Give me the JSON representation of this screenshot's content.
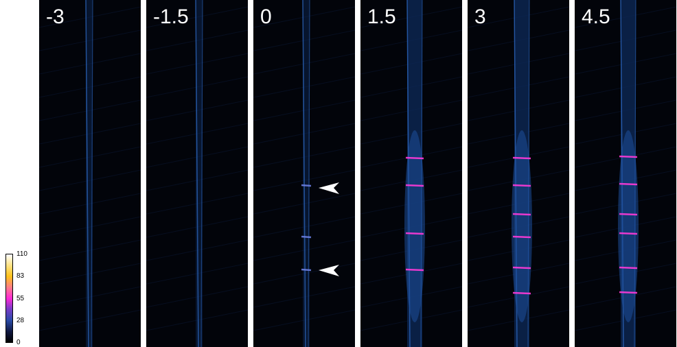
{
  "colorbar": {
    "ticks": [
      "110",
      "83",
      "55",
      "28",
      "0"
    ],
    "colors": [
      "#000000",
      "#2a4aa8",
      "#ff2ad6",
      "#ffc21a",
      "#ffffff"
    ]
  },
  "panels": [
    {
      "label": "-3",
      "stage": 0,
      "arrows": false
    },
    {
      "label": "-1.5",
      "stage": 0,
      "arrows": false
    },
    {
      "label": "0",
      "stage": 1,
      "arrows": true
    },
    {
      "label": "1.5",
      "stage": 2,
      "arrows": false
    },
    {
      "label": "3",
      "stage": 3,
      "arrows": false
    },
    {
      "label": "4.5",
      "stage": 4,
      "arrows": false
    }
  ]
}
